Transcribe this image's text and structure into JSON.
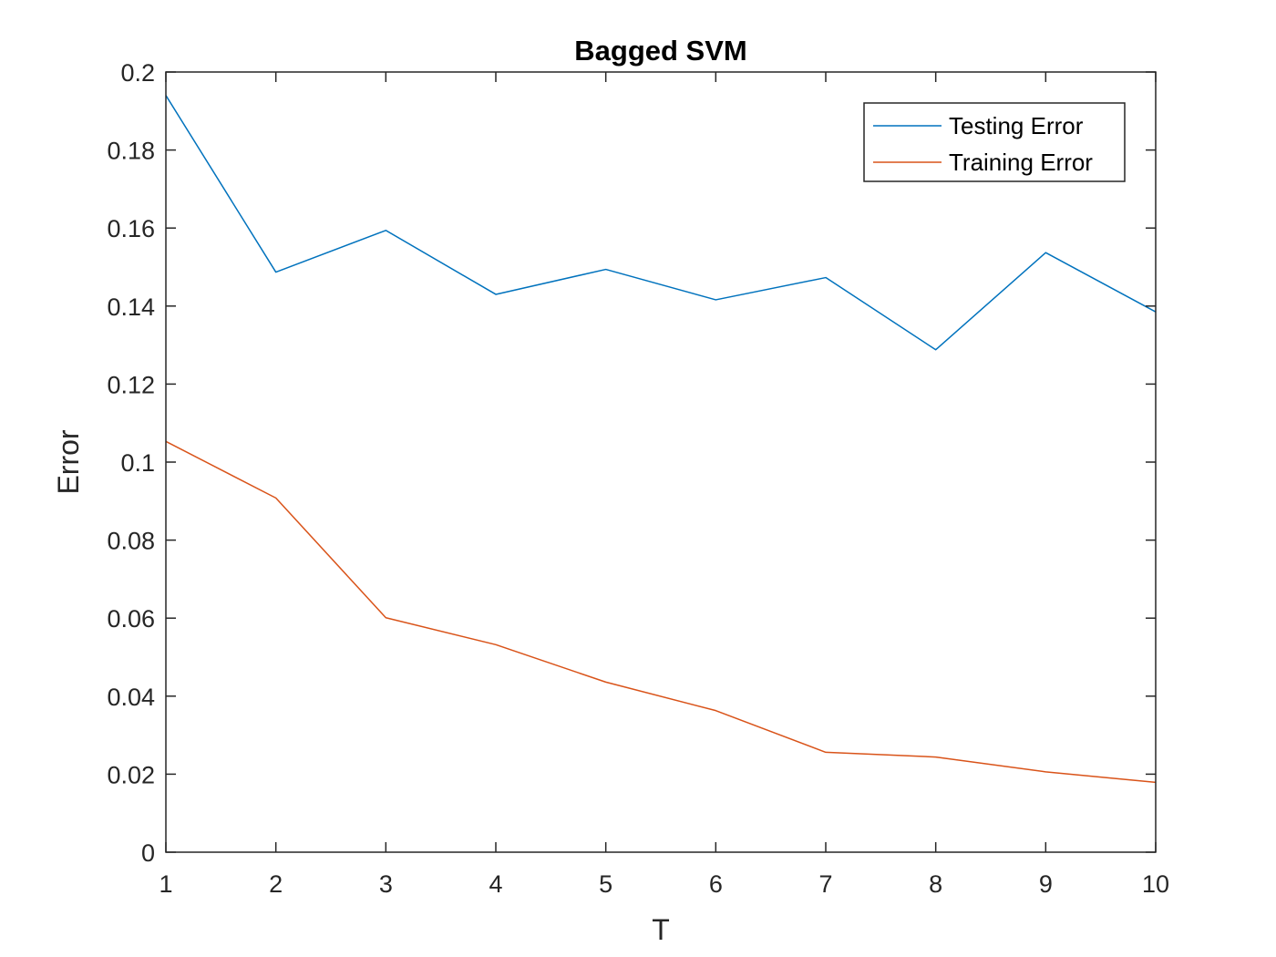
{
  "chart_data": {
    "type": "line",
    "title": "Bagged SVM",
    "xlabel": "T",
    "ylabel": "Error",
    "x": [
      1,
      2,
      3,
      4,
      5,
      6,
      7,
      8,
      9,
      10
    ],
    "xlim": [
      1,
      10
    ],
    "ylim": [
      0,
      0.2
    ],
    "xticks": [
      1,
      2,
      3,
      4,
      5,
      6,
      7,
      8,
      9,
      10
    ],
    "xtick_labels": [
      "1",
      "2",
      "3",
      "4",
      "5",
      "6",
      "7",
      "8",
      "9",
      "10"
    ],
    "yticks": [
      0,
      0.02,
      0.04,
      0.06,
      0.08,
      0.1,
      0.12,
      0.14,
      0.16,
      0.18,
      0.2
    ],
    "ytick_labels": [
      "0",
      "0.02",
      "0.04",
      "0.06",
      "0.08",
      "0.1",
      "0.12",
      "0.14",
      "0.16",
      "0.18",
      "0.2"
    ],
    "grid": false,
    "legend_position": "top-right",
    "series": [
      {
        "name": "Testing Error",
        "color": "#0072BD",
        "values": [
          0.194,
          0.1487,
          0.1594,
          0.143,
          0.1494,
          0.1416,
          0.1473,
          0.1288,
          0.1537,
          0.1385
        ]
      },
      {
        "name": "Training Error",
        "color": "#D95319",
        "values": [
          0.1053,
          0.0908,
          0.0601,
          0.0532,
          0.0436,
          0.0363,
          0.0256,
          0.0244,
          0.0206,
          0.0179
        ]
      }
    ]
  }
}
